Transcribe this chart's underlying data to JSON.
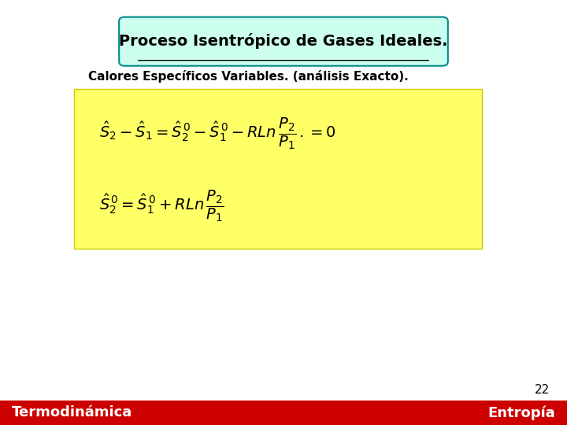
{
  "title": "Proceso Isentrópico de Gases Ideales.",
  "subtitle": "Calores Específicos Variables. (análisis Exacto).",
  "footer_left": "Termodinámica",
  "footer_right": "Entropía",
  "page_number": "22",
  "bg_color": "#ffffff",
  "title_box_bg": "#ccffee",
  "title_box_border": "#008888",
  "eq_box_bg": "#ffff66",
  "eq_box_border": "#cccc00",
  "footer_bg": "#cc0000",
  "footer_text_color": "#ffffff",
  "title_color": "#000000",
  "subtitle_color": "#000000",
  "eq_color": "#000000",
  "page_number_color": "#000000"
}
